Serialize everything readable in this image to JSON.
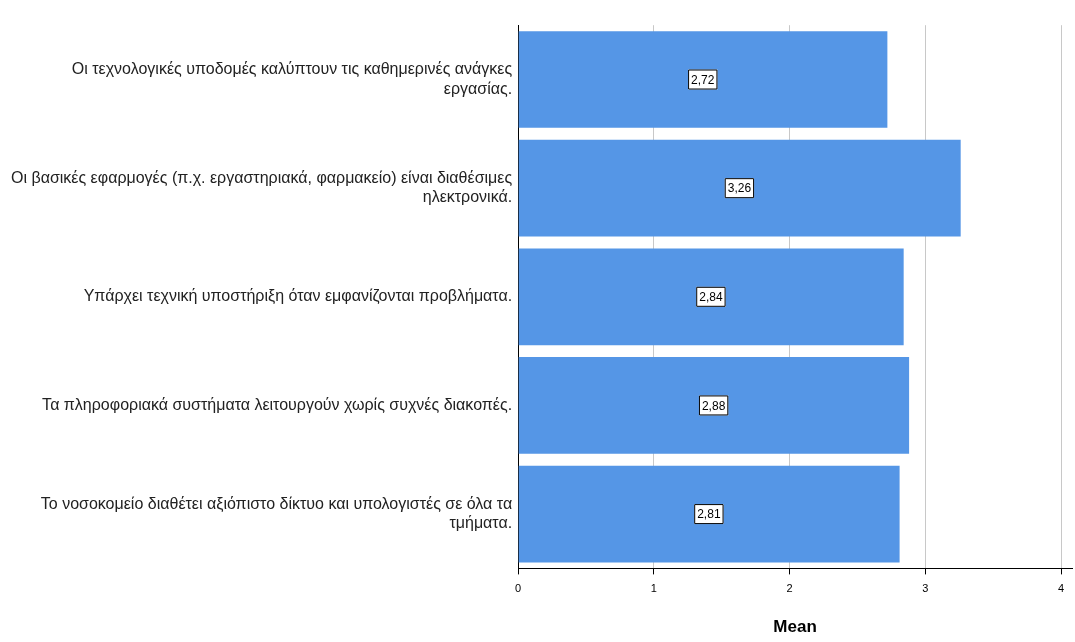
{
  "chart_data": {
    "type": "bar",
    "orientation": "horizontal",
    "xlabel": "Mean",
    "categories": [
      "Οι τεχνολογικές υποδομές καλύπτουν τις καθημερινές ανάγκες εργασίας.",
      "Οι βασικές εφαρμογές (π.χ. εργαστηριακά, φαρμακείο) είναι διαθέσιμες ηλεκτρονικά.",
      "Υπάρχει τεχνική υποστήριξη όταν εμφανίζονται προβλήματα.",
      "Τα πληροφοριακά συστήματα λειτουργούν χωρίς συχνές διακοπές.",
      "Το νοσοκομείο διαθέτει αξιόπιστο δίκτυο και υπολογιστές σε όλα τα τμήματα."
    ],
    "values": [
      2.72,
      3.26,
      2.84,
      2.88,
      2.81
    ],
    "value_labels": [
      "2,72",
      "3,26",
      "2,84",
      "2,88",
      "2,81"
    ],
    "color": "#5596e6",
    "xlim": [
      0,
      4.08
    ],
    "xticks": [
      0,
      1,
      2,
      3,
      4
    ],
    "grid": "x",
    "legend": false
  }
}
